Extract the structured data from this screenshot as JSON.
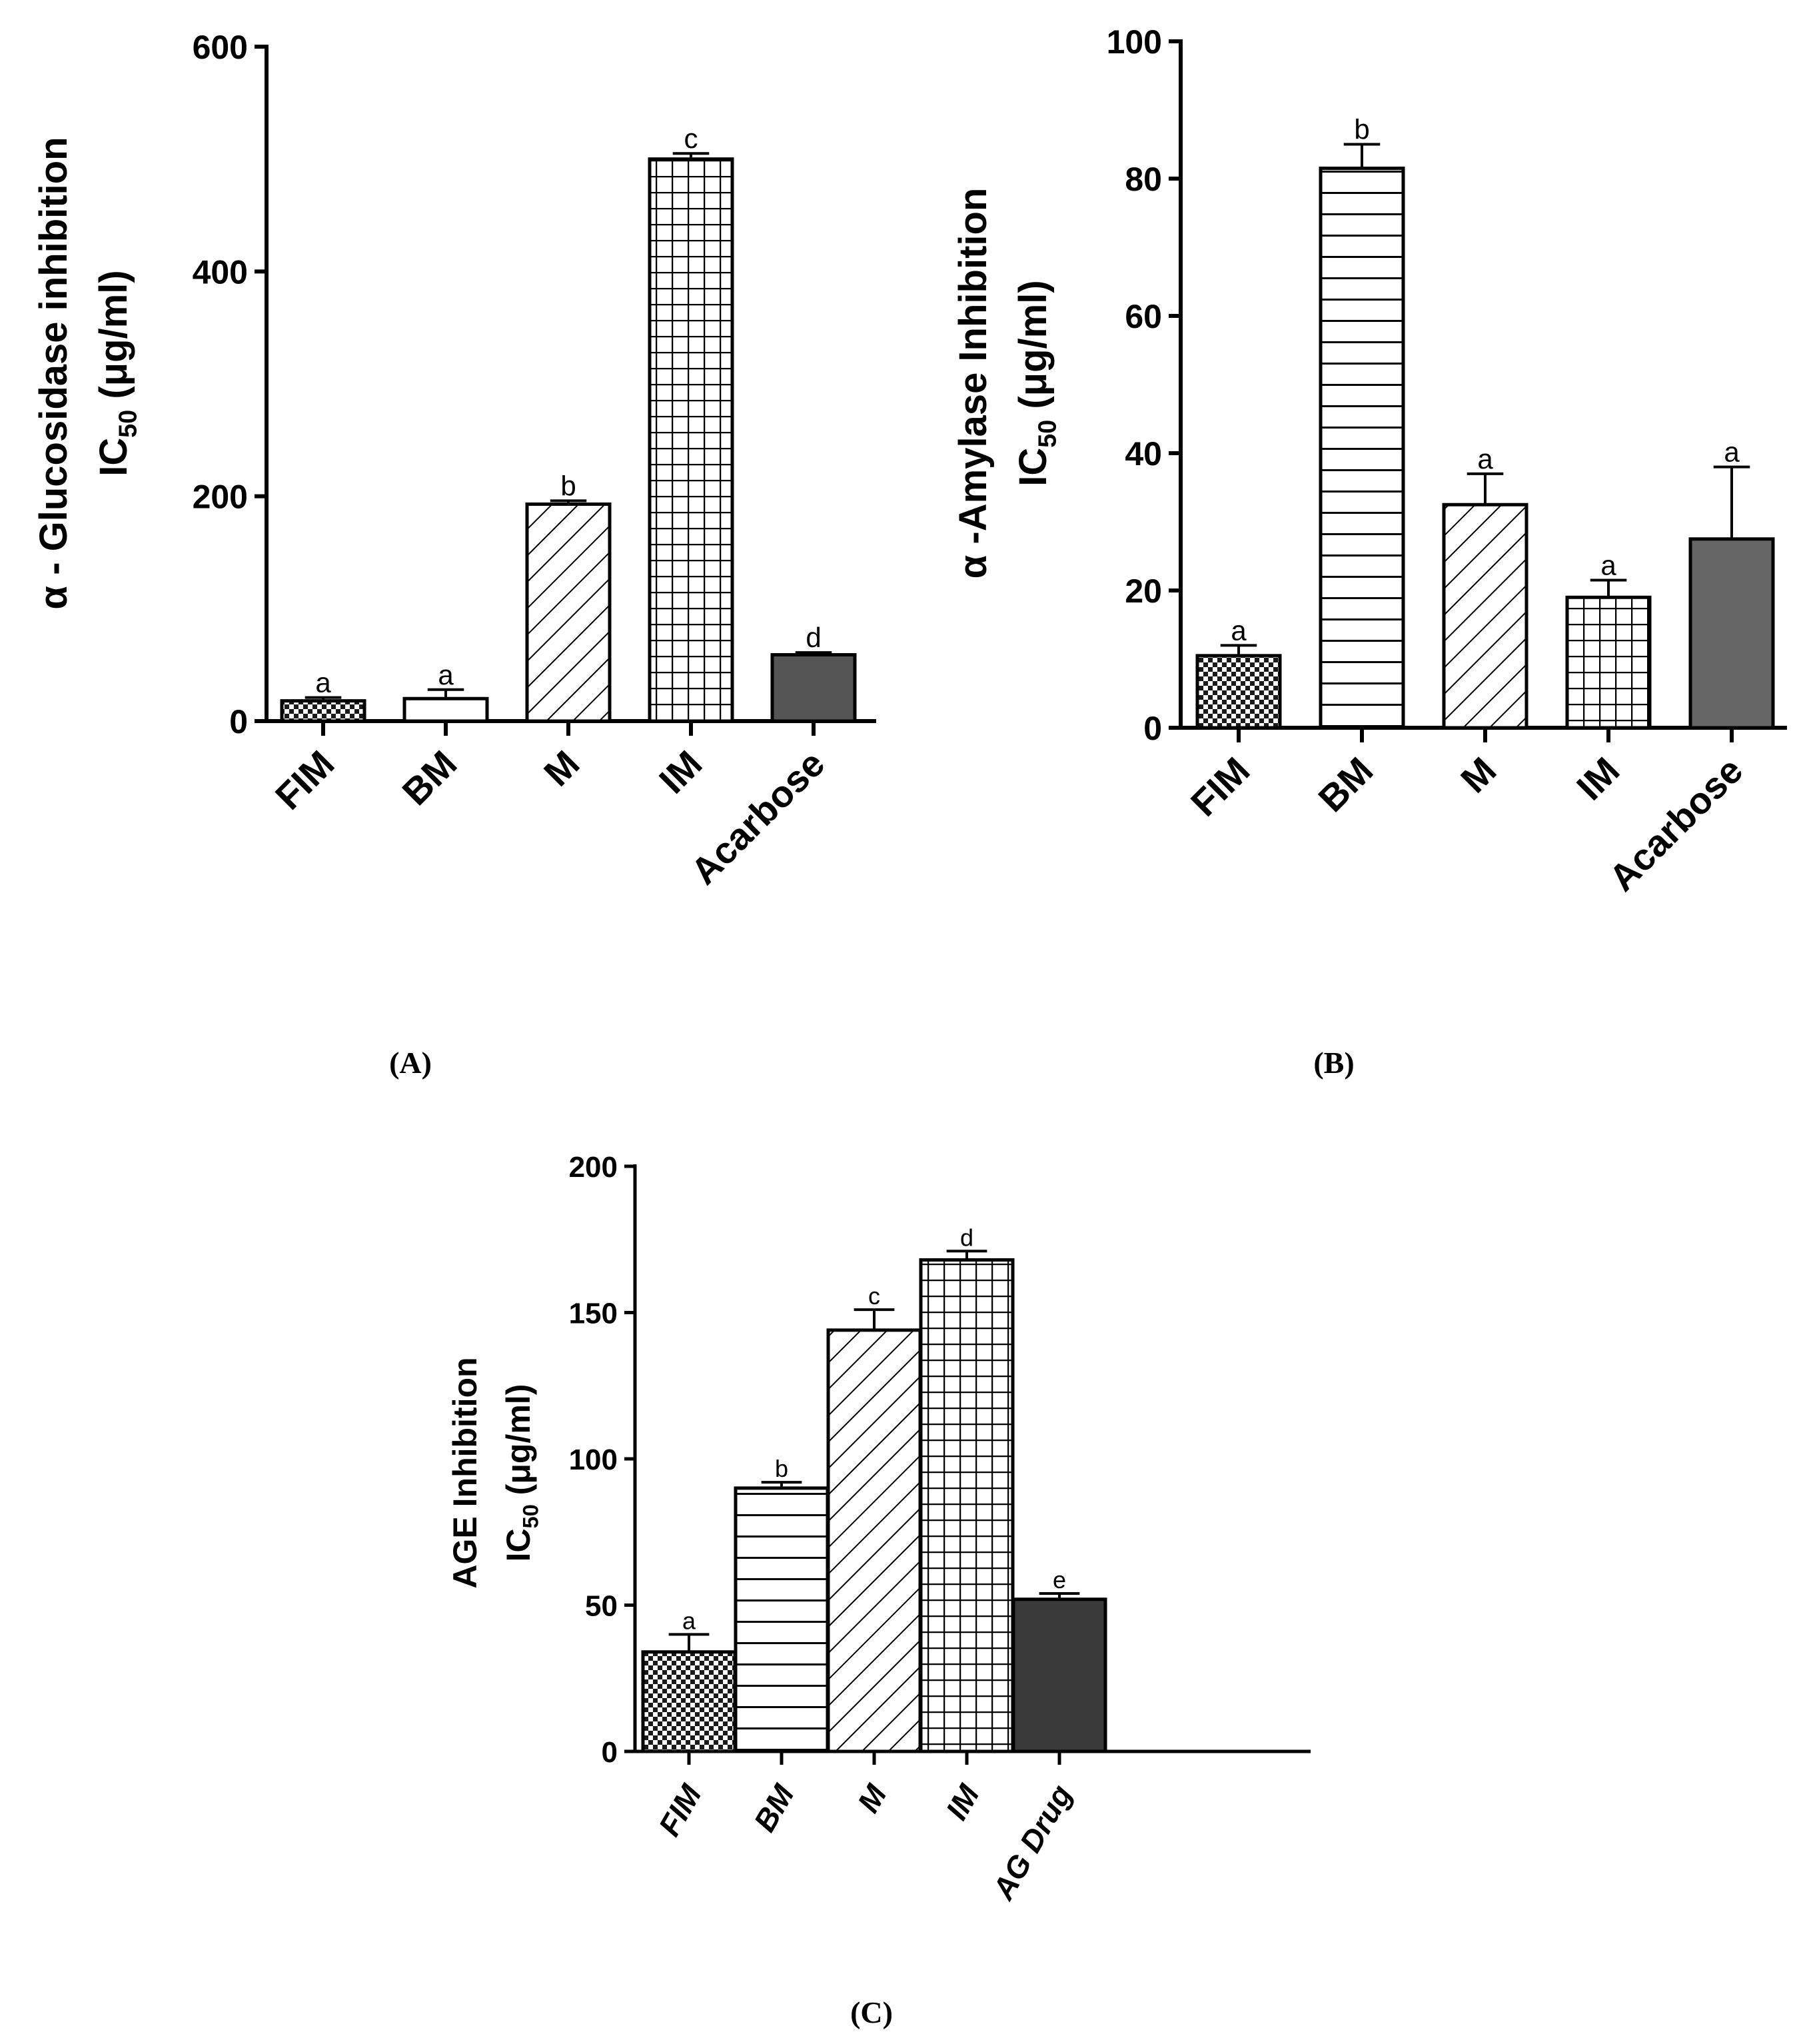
{
  "chart_data": [
    {
      "panel": "(A)",
      "type": "bar",
      "ylabel_line1": "α - Glucosidase inhibition",
      "ylabel_line2_prefix": "IC",
      "ylabel_line2_sub": "50",
      "ylabel_line2_suffix": " (μg/ml)",
      "ylim": [
        0,
        600
      ],
      "yticks": [
        0,
        200,
        400,
        600
      ],
      "categories": [
        "FIM",
        "BM",
        "M",
        "IM",
        "Acarbose"
      ],
      "values": [
        18,
        20,
        193,
        500,
        59
      ],
      "errors": [
        3,
        8,
        3,
        5,
        2
      ],
      "sig_letters": [
        "a",
        "a",
        "b",
        "c",
        "d"
      ],
      "patterns": [
        "checker",
        "empty",
        "diag",
        "grid",
        "solid"
      ],
      "colors": {
        "bar_stroke": "#000000",
        "solid_fill": "#555555"
      }
    },
    {
      "panel": "(B)",
      "type": "bar",
      "ylabel_line1": "α -Amylase Inhibition",
      "ylabel_line2_prefix": "IC",
      "ylabel_line2_sub": "50",
      "ylabel_line2_suffix": " (μg/ml)",
      "ylim": [
        0,
        100
      ],
      "yticks": [
        0,
        20,
        40,
        60,
        80,
        100
      ],
      "categories": [
        "FIM",
        "BM",
        "M",
        "IM",
        "Acarbose"
      ],
      "values": [
        10.5,
        81.5,
        32.5,
        19,
        27.5
      ],
      "errors": [
        1.5,
        3.5,
        4.5,
        2.5,
        10.5
      ],
      "sig_letters": [
        "a",
        "b",
        "a",
        "a",
        "a"
      ],
      "patterns": [
        "checker",
        "hlines",
        "diag",
        "grid",
        "solid"
      ],
      "colors": {
        "bar_stroke": "#000000",
        "solid_fill": "#666666"
      }
    },
    {
      "panel": "(C)",
      "type": "bar",
      "ylabel_line1": "AGE Inhibition",
      "ylabel_line2_prefix": "IC",
      "ylabel_line2_sub": "50",
      "ylabel_line2_suffix": " (μg/ml)",
      "ylim": [
        0,
        200
      ],
      "yticks": [
        0,
        50,
        100,
        150,
        200
      ],
      "categories": [
        "FIM",
        "BM",
        "M",
        "IM",
        "AG Drug"
      ],
      "values": [
        34,
        90,
        144,
        168,
        52
      ],
      "errors": [
        6,
        2,
        7,
        3,
        2
      ],
      "sig_letters": [
        "a",
        "b",
        "c",
        "d",
        "e"
      ],
      "patterns": [
        "checker",
        "hlines",
        "diag",
        "grid",
        "solid"
      ],
      "colors": {
        "bar_stroke": "#000000",
        "solid_fill": "#3a3a3a"
      }
    }
  ]
}
